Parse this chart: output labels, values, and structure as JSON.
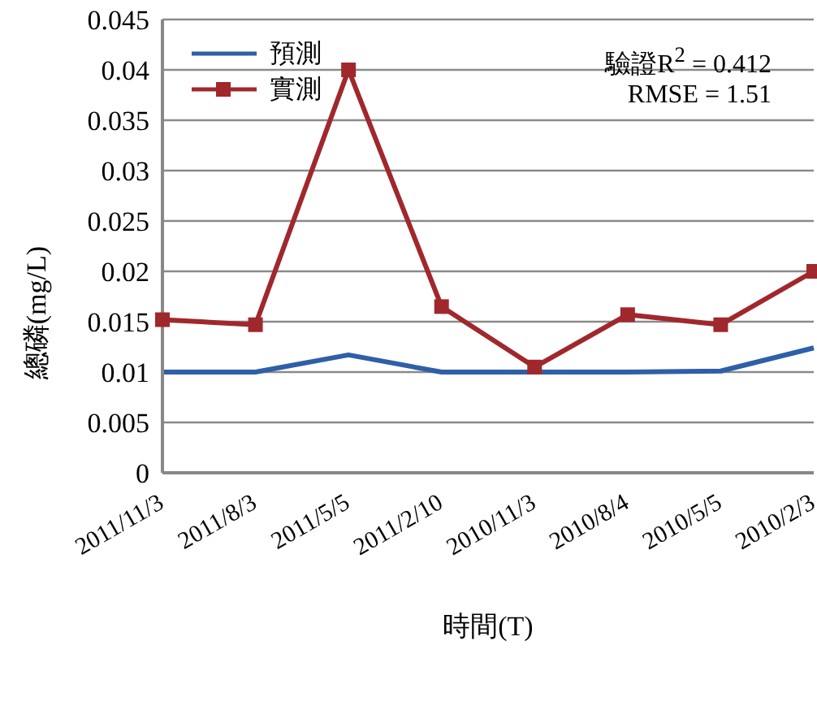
{
  "chart_data": {
    "type": "line",
    "xlabel": "時間(T)",
    "ylabel": "總磷(mg/L)",
    "categories": [
      "2011/11/3",
      "2011/8/3",
      "2011/5/5",
      "2011/2/10",
      "2010/11/3",
      "2010/8/4",
      "2010/5/5",
      "2010/2/3"
    ],
    "series": [
      {
        "name": "預測",
        "color": "#2e5fa8",
        "marker": "none",
        "values": [
          0.01,
          0.01,
          0.0117,
          0.01,
          0.01,
          0.01,
          0.0101,
          0.0124
        ]
      },
      {
        "name": "實測",
        "color": "#a0282d",
        "marker": "square",
        "values": [
          0.0152,
          0.0147,
          0.04,
          0.0165,
          0.0105,
          0.0157,
          0.0147,
          0.02
        ]
      }
    ],
    "ylim": [
      0,
      0.045
    ],
    "yticks": [
      0,
      0.005,
      0.01,
      0.015,
      0.02,
      0.025,
      0.03,
      0.035,
      0.04,
      0.045
    ],
    "grid": "y",
    "legend": "top left",
    "annotations": [
      "驗證R$^{2}$ = 0.412",
      "RMSE = 1.51"
    ]
  }
}
